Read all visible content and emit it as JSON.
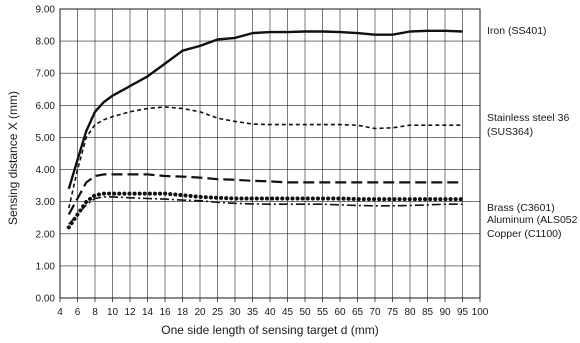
{
  "chart_data": {
    "type": "line",
    "title": "",
    "xlabel": "One side length of sensing target d (mm)",
    "ylabel": "Sensing distance X (mm)",
    "xlim": [
      4,
      100
    ],
    "ylim": [
      0,
      9
    ],
    "x_ticks": [
      4,
      6,
      8,
      10,
      12,
      14,
      16,
      18,
      20,
      25,
      30,
      35,
      40,
      45,
      50,
      55,
      60,
      65,
      70,
      75,
      80,
      85,
      90,
      95,
      100
    ],
    "x_tick_labels": [
      "4",
      "6",
      "8",
      "10",
      "12",
      "14",
      "16",
      "18",
      "20",
      "25",
      "30",
      "35",
      "40",
      "45",
      "50",
      "55",
      "60",
      "65",
      "70",
      "75",
      "80",
      "85",
      "90",
      "95",
      "100"
    ],
    "y_ticks": [
      0,
      1,
      2,
      3,
      4,
      5,
      6,
      7,
      8,
      9
    ],
    "y_tick_labels": [
      "0.00",
      "1.00",
      "2.00",
      "3.00",
      "4.00",
      "5.00",
      "6.00",
      "7.00",
      "8.00",
      "9.00"
    ],
    "grid": true,
    "legend_placement": "right, labels at line ends",
    "series": [
      {
        "name": "Iron (SS401)",
        "label_lines": [
          "Iron (SS401)"
        ],
        "dash": "solid",
        "x": [
          5,
          6,
          7,
          8,
          9,
          10,
          12,
          14,
          16,
          18,
          20,
          25,
          30,
          35,
          40,
          45,
          50,
          55,
          60,
          65,
          70,
          75,
          80,
          85,
          90,
          95
        ],
        "y": [
          3.4,
          4.3,
          5.2,
          5.8,
          6.1,
          6.3,
          6.6,
          6.9,
          7.3,
          7.7,
          7.85,
          8.05,
          8.1,
          8.25,
          8.28,
          8.28,
          8.3,
          8.3,
          8.28,
          8.25,
          8.2,
          8.2,
          8.3,
          8.32,
          8.32,
          8.3
        ]
      },
      {
        "name": "Stainless steel 36 (SUS364)",
        "label_lines": [
          "Stainless steel 36",
          "(SUS364)"
        ],
        "dash": "short",
        "x": [
          5,
          6,
          7,
          8,
          9,
          10,
          12,
          14,
          16,
          18,
          20,
          25,
          30,
          35,
          40,
          45,
          50,
          55,
          60,
          65,
          70,
          75,
          80,
          85,
          90,
          95
        ],
        "y": [
          2.8,
          4.0,
          5.0,
          5.4,
          5.55,
          5.65,
          5.8,
          5.9,
          5.95,
          5.9,
          5.8,
          5.6,
          5.5,
          5.42,
          5.4,
          5.4,
          5.4,
          5.4,
          5.4,
          5.38,
          5.28,
          5.3,
          5.38,
          5.38,
          5.38,
          5.38
        ]
      },
      {
        "name": "Brass (C3601)",
        "label_lines": [
          "Brass (C3601)"
        ],
        "dash": "long",
        "x": [
          5,
          6,
          7,
          8,
          9,
          10,
          12,
          14,
          16,
          18,
          20,
          25,
          30,
          35,
          40,
          45,
          50,
          55,
          60,
          65,
          70,
          75,
          80,
          85,
          90,
          95
        ],
        "y": [
          2.6,
          3.1,
          3.6,
          3.8,
          3.85,
          3.85,
          3.85,
          3.85,
          3.8,
          3.78,
          3.75,
          3.7,
          3.68,
          3.65,
          3.63,
          3.6,
          3.6,
          3.6,
          3.6,
          3.6,
          3.6,
          3.6,
          3.6,
          3.6,
          3.6,
          3.6
        ]
      },
      {
        "name": "Aluminum (ALS052",
        "label_lines": [
          "Aluminum (ALS052"
        ],
        "dash": "dot",
        "x": [
          5,
          6,
          7,
          8,
          9,
          10,
          12,
          14,
          16,
          18,
          20,
          25,
          30,
          35,
          40,
          45,
          50,
          55,
          60,
          65,
          70,
          75,
          80,
          85,
          90,
          95
        ],
        "y": [
          2.2,
          2.6,
          3.0,
          3.2,
          3.25,
          3.25,
          3.25,
          3.25,
          3.25,
          3.2,
          3.15,
          3.12,
          3.1,
          3.1,
          3.1,
          3.1,
          3.1,
          3.1,
          3.1,
          3.08,
          3.08,
          3.08,
          3.08,
          3.08,
          3.08,
          3.08
        ]
      },
      {
        "name": "Copper (C1100)",
        "label_lines": [
          "Copper (C1100)"
        ],
        "dash": "dashdot",
        "x": [
          5,
          6,
          7,
          8,
          9,
          10,
          12,
          14,
          16,
          18,
          20,
          25,
          30,
          35,
          40,
          45,
          50,
          55,
          60,
          65,
          70,
          75,
          80,
          85,
          90,
          95
        ],
        "y": [
          2.3,
          2.6,
          2.9,
          3.1,
          3.15,
          3.15,
          3.12,
          3.1,
          3.08,
          3.05,
          3.03,
          2.98,
          2.95,
          2.93,
          2.92,
          2.92,
          2.92,
          2.92,
          2.9,
          2.88,
          2.87,
          2.87,
          2.88,
          2.9,
          2.92,
          2.92
        ]
      }
    ]
  }
}
